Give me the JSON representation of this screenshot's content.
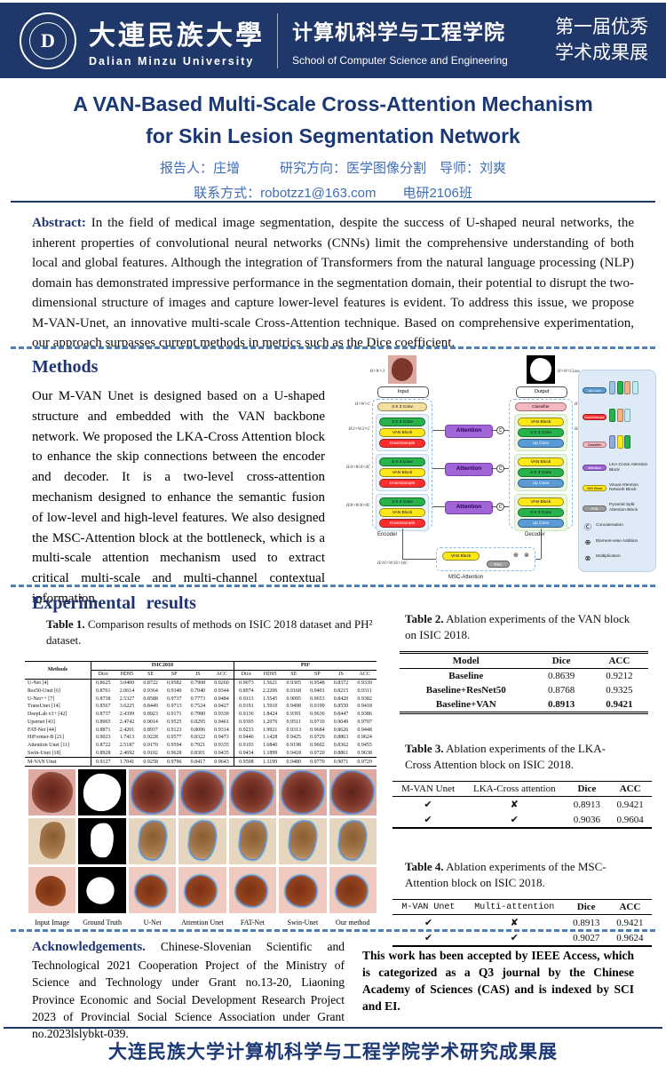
{
  "colors": {
    "navy": "#20376a",
    "title_blue": "#1b3876",
    "info_blue": "#3f6db5",
    "dash_blue": "#4d80b8"
  },
  "header": {
    "logo_letter": "D",
    "university_zh": "大連民族大學",
    "university_en": "Dalian Minzu University",
    "school_zh": "计算机科学与工程学院",
    "school_en": "School of Computer Science and Engineering",
    "event_line1": "第一届优秀",
    "event_line2": "学术成果展"
  },
  "title": {
    "line1": "A VAN-Based Multi-Scale Cross-Attention Mechanism",
    "line2": "for Skin Lesion Segmentation Network",
    "presenter_line": "报告人：庄增　　　研究方向：医学图像分割　导师：刘爽",
    "contact_line": "联系方式：robotzz1@163.com　　电研2106班"
  },
  "abstract": {
    "label": "Abstract:",
    "text": " In the field of medical image segmentation, despite the success of U-shaped neural networks, the inherent properties of convolutional neural networks (CNNs) limit the comprehensive understanding of both local and global features. Although the integration of Transformers from the natural language processing (NLP) domain has demonstrated impressive performance in the segmentation domain, their potential to disrupt the two-dimensional structure of images and capture lower-level features is evident. To address this issue, we propose M-VAN-Unet, an innovative multi-scale Cross-Attention technique. Based on comprehensive experimentation, our approach surpasses current methods in metrics such as the Dice coefficient."
  },
  "methods": {
    "heading": "Methods",
    "text": "Our M-VAN Unet is designed based on a U-shaped structure and embedded with the VAN backbone network. We proposed the LKA-Cross Attention block to enhance the skip connections between the encoder and decoder. It is a two-level cross-attention mechanism designed to enhance the semantic fusion of low-level and high-level features. We also designed the MSC-Attention block at the bottleneck, which is a multi-scale attention mechanism used to extract critical multi-scale and multi-channel contextual information."
  },
  "diagram": {
    "input_label": "Input",
    "output_label": "Output",
    "encoder_label": "Encoder",
    "decoder_label": "Decoder",
    "msc_label": "MSC-Attention",
    "blocks": {
      "stem": "3 X 3 Conv",
      "conv": "3 X 3 Conv",
      "van": "VAN Block",
      "down": "DownSample",
      "up": "Up Conv",
      "classifier": "Classifier",
      "attention": "Attention",
      "psa": "PSA",
      "concat": "C",
      "add": "⊕",
      "mul": "⊗"
    },
    "dims": {
      "in": "H×W×3",
      "out": "H×W×Class",
      "d0": "H×W×C",
      "d1": "H/2×W/2×C",
      "d2": "H/4×W/4×4C",
      "d3": "H/8×W/8×8C",
      "d4": "H/16×W/16×16C",
      "dc": "H×W×C/2"
    },
    "legend": [
      {
        "type": "pill-upconv",
        "label": "Up Conv",
        "chips": [
          "#9dc3e6",
          "#27b34a",
          "#f4b183",
          "#bdeef5"
        ]
      },
      {
        "type": "pill-downsample",
        "label": "DownSample",
        "chips": [
          "#27b34a",
          "#f4b183",
          "#bdeef5"
        ]
      },
      {
        "type": "pill-classifier",
        "label": "Classifier",
        "chips": [
          "#8faadc",
          "#ffe81a",
          "#27b34a"
        ]
      },
      {
        "type": "pill-attention",
        "label": "Attention",
        "desc": "LKA-Cross Attention Block"
      },
      {
        "type": "pill-van",
        "label": "VAN Block",
        "desc": "Visual Attention Network Block"
      },
      {
        "type": "pill-psa",
        "label": "PSA",
        "desc": "Pyramid Split Attention Block"
      },
      {
        "type": "sym",
        "label": "Ⓒ",
        "desc": "Concatenation"
      },
      {
        "type": "sym",
        "label": "⊕",
        "desc": "Element-wise Addition"
      },
      {
        "type": "sym",
        "label": "⊗",
        "desc": "Multiplication"
      }
    ]
  },
  "results": {
    "heading": "Experimental results",
    "table1": {
      "caption_bold": "Table 1.",
      "caption_rest": " Comparison results of methods on ISIC 2018 dataset and PH² dataset.",
      "col0": "Methods",
      "group1": "ISIC2018",
      "group2": "PH²",
      "subcols": [
        "Dice",
        "HD95",
        "SE",
        "SP",
        "JS",
        "ACC"
      ],
      "rows": [
        [
          "U-Net [4]",
          "0.8625",
          "3.0400",
          "0.8722",
          "0.9582",
          "0.7908",
          "0.9260",
          "0.9073",
          "1.5621",
          "0.9305",
          "0.9548",
          "0.8372",
          "0.9339"
        ],
        [
          "Res50-Unet [6]",
          "0.8761",
          "2.0614",
          "0.9364",
          "0.9340",
          "0.7940",
          "0.9344",
          "0.8974",
          "2.2206",
          "0.9168",
          "0.9401",
          "0.8215",
          "0.9311"
        ],
        [
          "U-Net++ [7]",
          "0.8738",
          "2.5327",
          "0.8588",
          "0.9737",
          "0.7773",
          "0.9484",
          "0.9113",
          "1.5545",
          "0.9095",
          "0.9653",
          "0.8420",
          "0.9382"
        ],
        [
          "TransUnet [14]",
          "0.8567",
          "3.6225",
          "0.8449",
          "0.9713",
          "0.7524",
          "0.9427",
          "0.9191",
          "1.5910",
          "0.9498",
          "0.9199",
          "0.8550",
          "0.9418"
        ],
        [
          "DeepLab v3+ [42]",
          "0.8737",
          "2.4399",
          "0.8923",
          "0.9171",
          "0.7980",
          "0.9339",
          "0.9136",
          "1.8424",
          "0.9391",
          "0.9636",
          "0.8447",
          "0.9386"
        ],
        [
          "Upernet [43]",
          "0.8965",
          "2.4742",
          "0.9014",
          "0.9525",
          "0.8295",
          "0.9461",
          "0.9395",
          "1.2076",
          "0.9511",
          "0.9710",
          "0.9049",
          "0.9707"
        ],
        [
          "FAT-Net [44]",
          "0.8871",
          "2.4201",
          "0.8937",
          "0.9123",
          "0.8096",
          "0.9314",
          "0.9233",
          "1.9921",
          "0.9313",
          "0.9684",
          "0.8626",
          "0.9448"
        ],
        [
          "HiFormer-B [21]",
          "0.9023",
          "1.7413",
          "0.9228",
          "0.9577",
          "0.8322",
          "0.9473",
          "0.9446",
          "1.1428",
          "0.9425",
          "0.9729",
          "0.8863",
          "0.9624"
        ],
        [
          "Attention Unet [11]",
          "0.8722",
          "2.5187",
          "0.9170",
          "0.9594",
          "0.7921",
          "0.9335",
          "0.9103",
          "1.6840",
          "0.9198",
          "0.9602",
          "0.8362",
          "0.9455"
        ],
        [
          "Swin-Unet [18]",
          "0.8928",
          "2.4692",
          "0.9102",
          "0.9628",
          "0.8301",
          "0.9435",
          "0.9434",
          "1.1899",
          "0.9418",
          "0.9720",
          "0.8861",
          "0.9638"
        ],
        [
          "M-VAN Unet",
          "0.9127",
          "1.7041",
          "0.9258",
          "0.9796",
          "0.8417",
          "0.9643",
          "0.9508",
          "1.1199",
          "0.9480",
          "0.9770",
          "0.9071",
          "0.9729"
        ]
      ]
    },
    "figure": {
      "labels": [
        "Input Image",
        "Ground Truth",
        "U-Net",
        "Attention Unet",
        "FAT-Net",
        "Swin-Unet",
        "Our method"
      ]
    },
    "table2": {
      "caption_bold": "Table 2.",
      "caption_rest": " Ablation experiments of the VAN block on ISIC 2018.",
      "headers": [
        "Model",
        "Dice",
        "ACC"
      ],
      "rows": [
        [
          "Baseline",
          "0.8639",
          "0.9212"
        ],
        [
          "Baseline+ResNet50",
          "0.8768",
          "0.9325"
        ],
        [
          "Baseline+VAN",
          "0.8913",
          "0.9421"
        ]
      ]
    },
    "table3": {
      "caption_bold": "Table 3.",
      "caption_rest": " Ablation experiments of the LKA-Cross Attention block on ISIC 2018.",
      "headers": [
        "M-VAN Unet",
        "LKA-Cross attention",
        "Dice",
        "ACC"
      ],
      "rows": [
        [
          "✔",
          "✘",
          "0.8913",
          "0.9421"
        ],
        [
          "✔",
          "✔",
          "0.9036",
          "0.9604"
        ]
      ]
    },
    "table4": {
      "caption_bold": "Table 4.",
      "caption_rest": " Ablation experiments of the MSC-Attention block on ISIC 2018.",
      "headers": [
        "M-VAN Unet",
        "Multi-attention",
        "Dice",
        "ACC"
      ],
      "rows": [
        [
          "✔",
          "✘",
          "0.8913",
          "0.9421"
        ],
        [
          "✔",
          "✔",
          "0.9027",
          "0.9624"
        ]
      ]
    }
  },
  "acknowledgements": {
    "label": "Acknowledgements.",
    "text": " Chinese-Slovenian Scientific and Technological 2021 Cooperation Project of the Ministry of Science and Technology under Grant no.13-20, Liaoning Province Economic and Social Development Research Project 2023 of Provincial Social Science Association under Grant no.2023lslybkt-039."
  },
  "accepted_note": "This work has been accepted by IEEE Access, which is categorized as a Q3 journal by the Chinese Academy of Sciences (CAS) and is indexed by SCI and EI.",
  "footer": {
    "text": "大连民族大学计算机科学与工程学院学术研究成果展"
  }
}
